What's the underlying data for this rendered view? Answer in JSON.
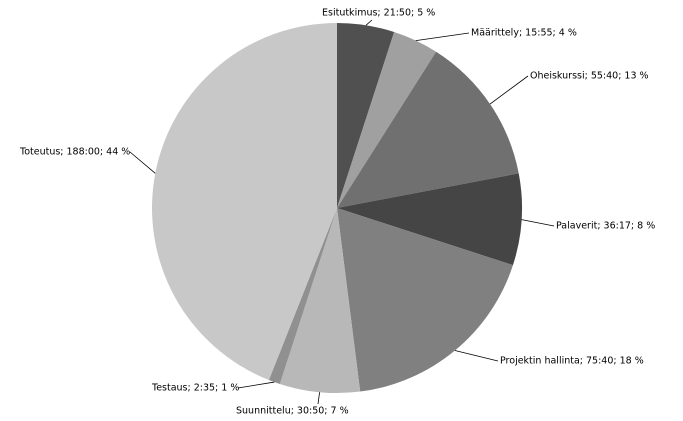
{
  "chart_data": {
    "type": "pie",
    "categories": [
      "Esitutkimus; 21:50; 5 %",
      "Määrittely; 15:55; 4 %",
      "Oheiskurssi; 55:40; 13 %",
      "Palaverit; 36:17; 8 %",
      "Projektin hallinta; 75:40; 18 %",
      "Suunnittelu; 30:50; 7 %",
      "Testaus; 2:35; 1 %",
      "Toteutus; 188:00; 44 %"
    ],
    "values": [
      5,
      4,
      13,
      8,
      18,
      7,
      1,
      44
    ],
    "colors": [
      "#505050",
      "#a0a0a0",
      "#707070",
      "#454545",
      "#808080",
      "#b8b8b8",
      "#909090",
      "#c8c8c8"
    ]
  }
}
